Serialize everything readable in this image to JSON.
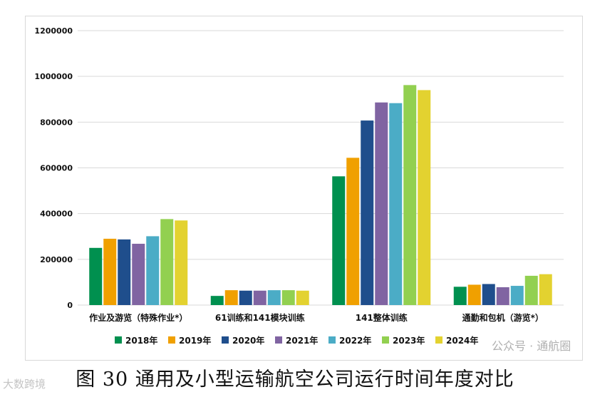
{
  "chart_data": {
    "type": "bar",
    "title": "",
    "xlabel": "",
    "ylabel": "",
    "ylim": [
      0,
      1200000
    ],
    "yticks": [
      0,
      200000,
      400000,
      600000,
      800000,
      1000000,
      1200000
    ],
    "ytick_labels": [
      "0",
      "200000",
      "400000",
      "600000",
      "800000",
      "1000000",
      "1200000"
    ],
    "grid": true,
    "legend_position": "bottom",
    "categories": [
      "作业及游览（特殊作业*）",
      "61训练和141模块训练",
      "141整体训练",
      "通勤和包机（游览*）"
    ],
    "series": [
      {
        "name": "2018年",
        "color": "#00904f",
        "values": [
          250000,
          40000,
          563000,
          80000
        ]
      },
      {
        "name": "2019年",
        "color": "#f0a000",
        "values": [
          290000,
          65000,
          644000,
          89000
        ]
      },
      {
        "name": "2020年",
        "color": "#1f4e8c",
        "values": [
          287000,
          63000,
          807000,
          92000
        ]
      },
      {
        "name": "2021年",
        "color": "#8064a2",
        "values": [
          268000,
          63000,
          886000,
          78000
        ]
      },
      {
        "name": "2022年",
        "color": "#4bacc6",
        "values": [
          301000,
          65000,
          883000,
          84000
        ]
      },
      {
        "name": "2023年",
        "color": "#92d050",
        "values": [
          376000,
          65000,
          962000,
          128000
        ]
      },
      {
        "name": "2024年",
        "color": "#e3d230",
        "values": [
          370000,
          63000,
          940000,
          135000
        ]
      }
    ]
  },
  "caption": "图 30  通用及小型运输航空公司运行时间年度对比",
  "watermarks": [
    "公众号 · 通航圈",
    "大数跨境"
  ]
}
